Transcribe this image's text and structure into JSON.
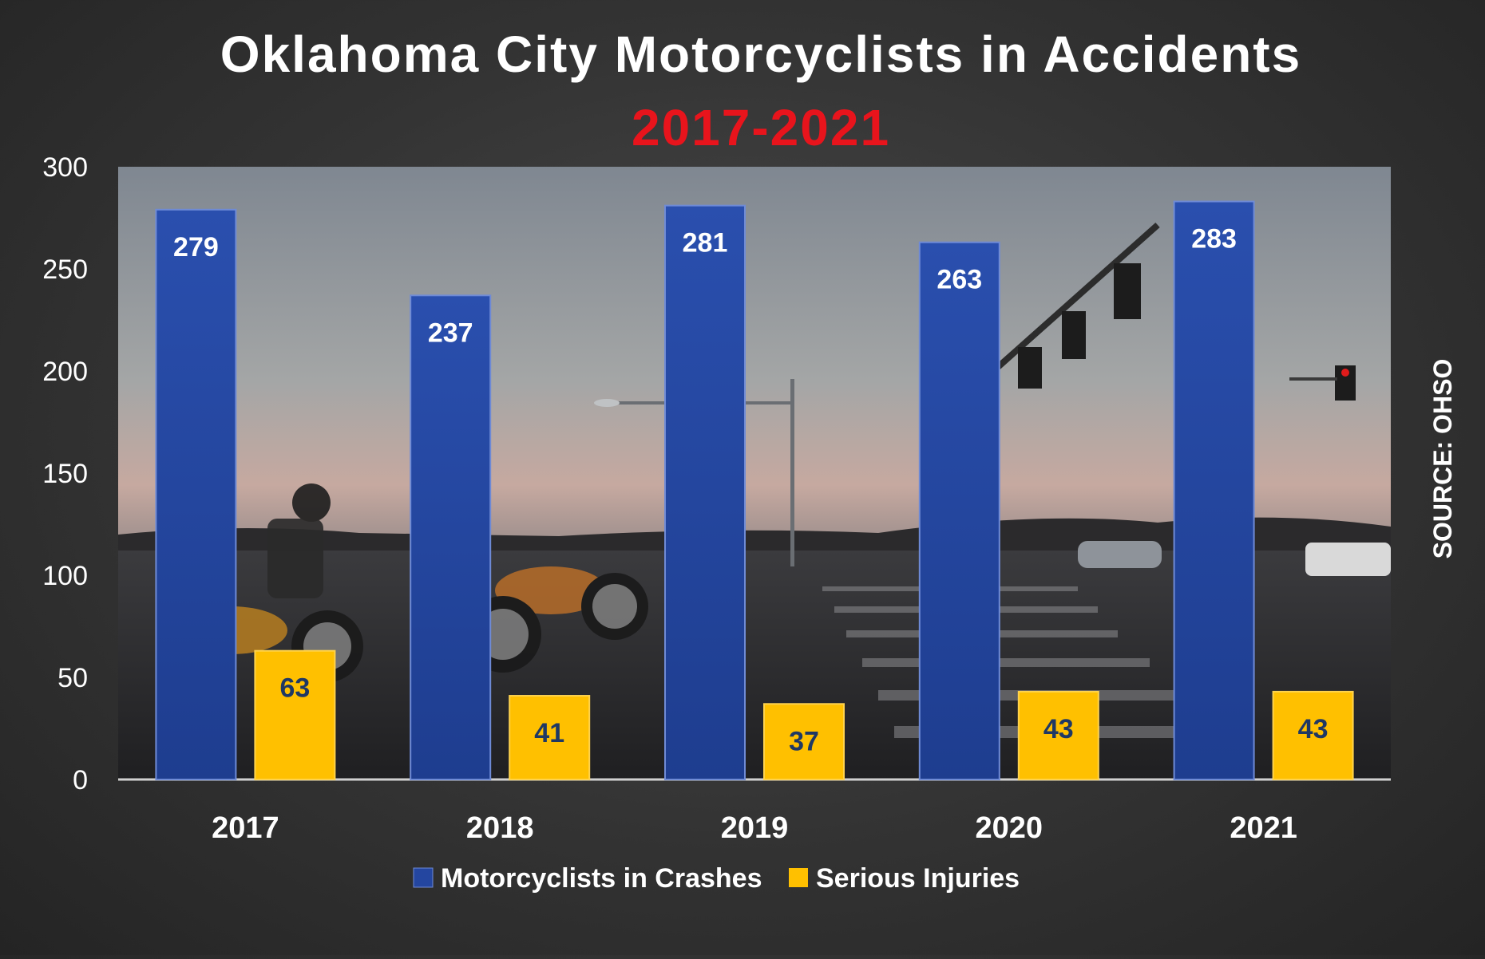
{
  "chart_data": {
    "type": "bar",
    "title": "Oklahoma City Motorcyclists in Accidents",
    "title_years": "2017-2021",
    "categories": [
      "2017",
      "2018",
      "2019",
      "2020",
      "2021"
    ],
    "series": [
      {
        "name": "Motorcyclists in Crashes",
        "values": [
          279,
          237,
          281,
          263,
          283
        ],
        "color": "#2446a0",
        "label_color": "#ffffff"
      },
      {
        "name": "Serious Injuries",
        "values": [
          63,
          41,
          37,
          43,
          43
        ],
        "color": "#ffc000",
        "label_color": "#1f3864"
      }
    ],
    "ylim": [
      0,
      300
    ],
    "yticks": [
      0,
      50,
      100,
      150,
      200,
      250,
      300
    ],
    "grid": false,
    "legend": "bottom",
    "source": "SOURCE: OHSO",
    "background": "photo of motorcycles at a city intersection at dusk",
    "colors": {
      "title": "#ffffff",
      "title_years": "#e8141c",
      "axis_text": "#ffffff"
    }
  }
}
